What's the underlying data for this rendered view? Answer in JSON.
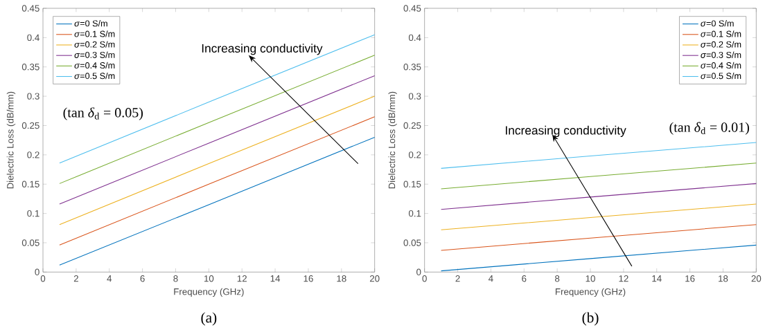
{
  "chart_data": [
    {
      "type": "line",
      "xlabel": "Frequency (GHz)",
      "ylabel": "Dielectric Loss (dB/mm)",
      "x": [
        1,
        10,
        20
      ],
      "series": [
        {
          "name": "*σ*=0 S/m",
          "color": "#0072bd",
          "values": [
            0.012,
            0.115,
            0.23
          ]
        },
        {
          "name": "*σ*=0.1 S/m",
          "color": "#d95319",
          "values": [
            0.046,
            0.15,
            0.265
          ]
        },
        {
          "name": "*σ*=0.2 S/m",
          "color": "#edb120",
          "values": [
            0.081,
            0.185,
            0.3
          ]
        },
        {
          "name": "*σ*=0.3 S/m",
          "color": "#7e2f8e",
          "values": [
            0.116,
            0.22,
            0.335
          ]
        },
        {
          "name": "*σ*=0.4 S/m",
          "color": "#77ac30",
          "values": [
            0.151,
            0.255,
            0.37
          ]
        },
        {
          "name": "*σ*=0.5 S/m",
          "color": "#4dbeee",
          "values": [
            0.186,
            0.29,
            0.405
          ]
        }
      ],
      "xlim": [
        0,
        20
      ],
      "xticks": [
        0,
        2,
        4,
        6,
        8,
        10,
        12,
        14,
        16,
        18,
        20
      ],
      "ylim": [
        0,
        0.45
      ],
      "yticks": [
        0,
        0.05,
        0.1,
        0.15,
        0.2,
        0.25,
        0.3,
        0.35,
        0.4,
        0.45
      ],
      "legend": "top left",
      "annotations": [
        "Increasing conductivity",
        "(tan *δ*$_{d}$ = 0.05)",
        "(a)"
      ]
    },
    {
      "type": "line",
      "xlabel": "Frequency (GHz)",
      "ylabel": "Dielectric Loss (dB/mm)",
      "x": [
        1,
        10,
        20
      ],
      "series": [
        {
          "name": "*σ*=0 S/m",
          "color": "#0072bd",
          "values": [
            0.002,
            0.023,
            0.046
          ]
        },
        {
          "name": "*σ*=0.1 S/m",
          "color": "#d95319",
          "values": [
            0.037,
            0.058,
            0.081
          ]
        },
        {
          "name": "*σ*=0.2 S/m",
          "color": "#edb120",
          "values": [
            0.072,
            0.093,
            0.116
          ]
        },
        {
          "name": "*σ*=0.3 S/m",
          "color": "#7e2f8e",
          "values": [
            0.107,
            0.128,
            0.151
          ]
        },
        {
          "name": "*σ*=0.4 S/m",
          "color": "#77ac30",
          "values": [
            0.142,
            0.163,
            0.186
          ]
        },
        {
          "name": "*σ*=0.5 S/m",
          "color": "#4dbeee",
          "values": [
            0.177,
            0.198,
            0.221
          ]
        }
      ],
      "xlim": [
        0,
        20
      ],
      "xticks": [
        0,
        2,
        4,
        6,
        8,
        10,
        12,
        14,
        16,
        18,
        20
      ],
      "ylim": [
        0,
        0.45
      ],
      "yticks": [
        0,
        0.05,
        0.1,
        0.15,
        0.2,
        0.25,
        0.3,
        0.35,
        0.4,
        0.45
      ],
      "legend": "top right",
      "annotations": [
        "Increasing conductivity",
        "(tan *δ*$_{d}$ = 0.01)",
        "(b)"
      ]
    }
  ]
}
